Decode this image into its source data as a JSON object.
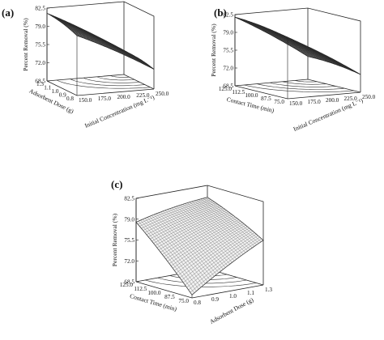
{
  "figure": {
    "panels": [
      {
        "id": "a",
        "label": "(a)"
      },
      {
        "id": "b",
        "label": "(b)"
      },
      {
        "id": "c",
        "label": "(c)"
      }
    ]
  },
  "chart_data": [
    {
      "type": "surface3d",
      "panel": "(a)",
      "zlabel": "Percent Removal (%)",
      "z_ticks": [
        "82.5",
        "79.0",
        "75.5",
        "72.0",
        "68.5"
      ],
      "zlim": [
        68.5,
        82.5
      ],
      "x_axis": {
        "label": "Adsorbent Dose (g)",
        "ticks": [
          "1.3",
          "1.1",
          "1.0",
          "0.9",
          "0.8"
        ],
        "range": [
          0.8,
          1.3
        ]
      },
      "y_axis": {
        "label": "Initial Concentration (mg L⁻¹)",
        "ticks": [
          "150.0",
          "175.0",
          "200.0",
          "225.0",
          "250.0"
        ],
        "range": [
          150,
          250
        ]
      },
      "surface": {
        "grid_x": [
          0.8,
          1.3
        ],
        "grid_y": [
          150,
          250
        ],
        "z": [
          [
            80.0,
            72.3
          ],
          [
            81.5,
            73.0
          ]
        ]
      }
    },
    {
      "type": "surface3d",
      "panel": "(b)",
      "zlabel": "Percent Removal (%)",
      "z_ticks": [
        "82.5",
        "79.0",
        "75.5",
        "72.0",
        "68.5"
      ],
      "zlim": [
        68.5,
        82.5
      ],
      "x_axis": {
        "label": "Contact Time (min)",
        "ticks": [
          "125.0",
          "112.5",
          "100.0",
          "87.5",
          "75.0"
        ],
        "range": [
          75,
          125
        ]
      },
      "y_axis": {
        "label": "Initial Concentration (mg L⁻¹)",
        "ticks": [
          "150.0",
          "175.0",
          "200.0",
          "225.0",
          "250.0"
        ],
        "range": [
          150,
          250
        ]
      },
      "surface": {
        "grid_x": [
          75,
          125
        ],
        "grid_y": [
          150,
          250
        ],
        "z": [
          [
            80.5,
            72.0
          ],
          [
            82.0,
            73.0
          ]
        ]
      }
    },
    {
      "type": "surface3d",
      "panel": "(c)",
      "zlabel": "Percent Removal (%)",
      "z_ticks": [
        "82.5",
        "79.0",
        "75.5",
        "72.0",
        "68.5"
      ],
      "zlim": [
        68.5,
        82.5
      ],
      "x_axis": {
        "label": "Contact Time (min)",
        "ticks": [
          "125.0",
          "112.5",
          "100.0",
          "87.5",
          "75.0"
        ],
        "range": [
          75,
          125
        ]
      },
      "y_axis": {
        "label": "Adsorbent Dose (g)",
        "ticks": [
          "0.8",
          "0.9",
          "1.0",
          "1.1",
          "1.3"
        ],
        "range": [
          0.8,
          1.3
        ]
      },
      "surface": {
        "grid_x": [
          75,
          125
        ],
        "grid_y": [
          0.8,
          1.3
        ],
        "z": [
          [
            69.0,
            76.0
          ],
          [
            78.5,
            80.5
          ]
        ]
      }
    }
  ]
}
